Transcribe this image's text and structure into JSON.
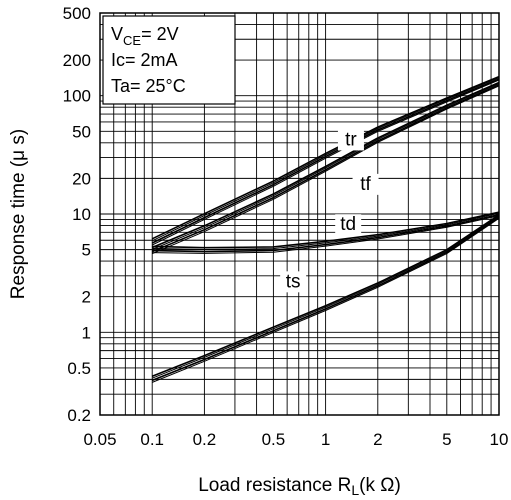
{
  "chart_data": {
    "type": "line",
    "x_scale": "log",
    "y_scale": "log",
    "xlim": [
      0.05,
      10
    ],
    "ylim": [
      0.2,
      500
    ],
    "grid": true,
    "xlabel": "Load resistance R",
    "xlabel_sub": "L",
    "xlabel_unit": "(k Ω)",
    "ylabel": "Response time (μ s)",
    "x_ticks": [
      {
        "value": 0.05,
        "label": "0.05"
      },
      {
        "value": 0.1,
        "label": "0.1"
      },
      {
        "value": 0.2,
        "label": "0.2"
      },
      {
        "value": 0.5,
        "label": "0.5"
      },
      {
        "value": 1,
        "label": "1"
      },
      {
        "value": 2,
        "label": "2"
      },
      {
        "value": 5,
        "label": "5"
      },
      {
        "value": 10,
        "label": "10"
      }
    ],
    "y_ticks": [
      {
        "value": 0.2,
        "label": "0.2"
      },
      {
        "value": 0.5,
        "label": "0.5"
      },
      {
        "value": 1,
        "label": "1"
      },
      {
        "value": 2,
        "label": "2"
      },
      {
        "value": 5,
        "label": "5"
      },
      {
        "value": 10,
        "label": "10"
      },
      {
        "value": 20,
        "label": "20"
      },
      {
        "value": 50,
        "label": "50"
      },
      {
        "value": 100,
        "label": "100"
      },
      {
        "value": 200,
        "label": "200"
      },
      {
        "value": 500,
        "label": "500"
      }
    ],
    "conditions": {
      "line1_main": "V",
      "line1_sub": "CE",
      "line1_rest": "= 2V",
      "line2": "Ic= 2mA",
      "line3": "Ta= 25°C"
    },
    "series": [
      {
        "name": "tr",
        "x": [
          0.1,
          0.2,
          0.5,
          1,
          2,
          5,
          10
        ],
        "values": [
          5.8,
          9.5,
          18,
          31,
          52,
          92,
          140
        ]
      },
      {
        "name": "tf",
        "x": [
          0.1,
          0.2,
          0.5,
          1,
          2,
          5,
          10
        ],
        "values": [
          4.9,
          7.5,
          14,
          24,
          42,
          80,
          125
        ]
      },
      {
        "name": "td",
        "x": [
          0.1,
          0.2,
          0.5,
          1,
          2,
          5,
          10
        ],
        "values": [
          5.0,
          4.9,
          5.0,
          5.6,
          6.4,
          8.0,
          10
        ]
      },
      {
        "name": "ts",
        "x": [
          0.1,
          0.2,
          0.5,
          1,
          2,
          5,
          10
        ],
        "values": [
          0.4,
          0.6,
          1.05,
          1.6,
          2.5,
          4.8,
          9.5
        ]
      }
    ],
    "annotations": [
      {
        "text": "tr",
        "x": 1.4,
        "y": 38
      },
      {
        "text": "tf",
        "x": 1.7,
        "y": 16
      },
      {
        "text": "td",
        "x": 1.35,
        "y": 7.3
      },
      {
        "text": "ts",
        "x": 0.65,
        "y": 2.4
      }
    ]
  }
}
